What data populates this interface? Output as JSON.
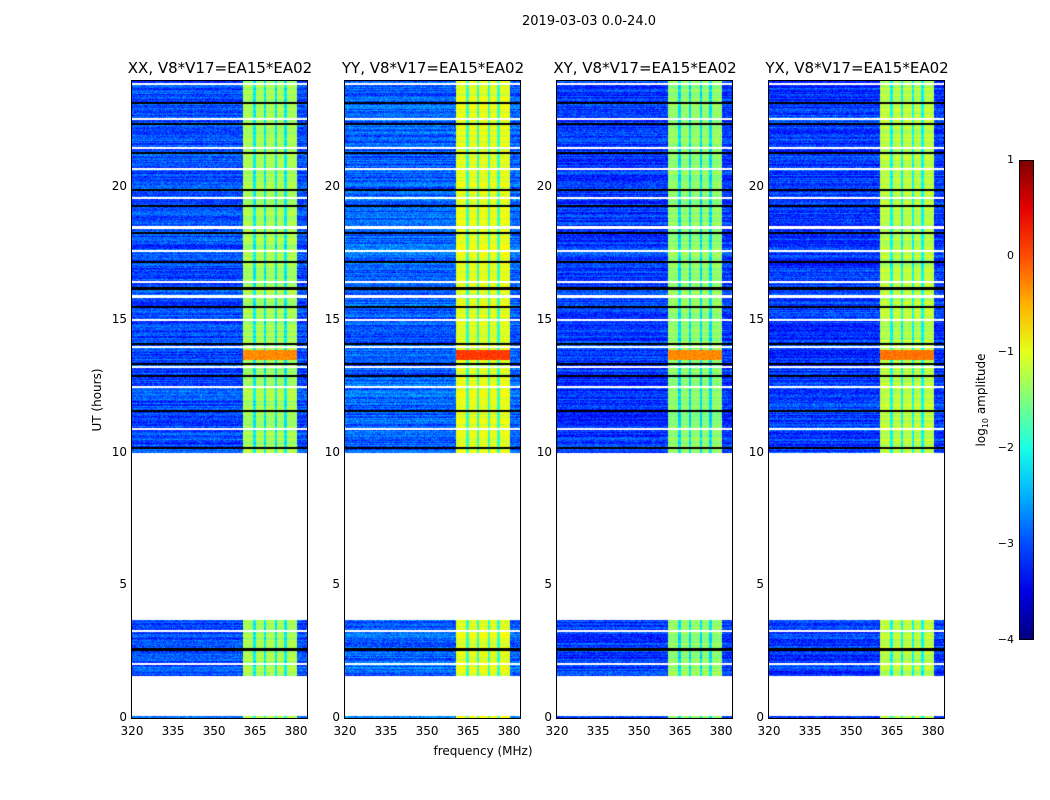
{
  "chart_data": {
    "type": "heatmap",
    "title": "2019-03-03 0.0-24.0",
    "xlabel": "frequency (MHz)",
    "ylabel": "UT (hours)",
    "xlim": [
      320,
      384
    ],
    "ylim": [
      0,
      24
    ],
    "xticks": [
      "320",
      "335",
      "350",
      "365",
      "380"
    ],
    "xtick_values": [
      320,
      335,
      350,
      365,
      380
    ],
    "yticks": [
      "0",
      "5",
      "10",
      "15",
      "20"
    ],
    "ytick_values": [
      0,
      5,
      10,
      15,
      20
    ],
    "colorbar": {
      "label": "log10 amplitude",
      "label_main": "log",
      "label_sub": "10",
      "label_rest": " amplitude",
      "colormap": "jet",
      "range": [
        -4,
        1
      ],
      "ticks": [
        "1",
        "0",
        "−1",
        "−2",
        "−3",
        "−4"
      ],
      "tick_values": [
        1,
        0,
        -1,
        -2,
        -3,
        -4
      ]
    },
    "data_time_ranges_hours": [
      [
        0.0,
        0.1
      ],
      [
        1.6,
        3.7
      ],
      [
        10.0,
        24.0
      ]
    ],
    "flagged_gaps_hours": [
      2.05,
      2.6,
      3.3,
      10.2,
      10.9,
      11.6,
      12.5,
      12.9,
      13.25,
      13.35,
      14.0,
      14.1,
      15.0,
      15.5,
      15.9,
      16.2,
      16.45,
      17.2,
      17.6,
      18.3,
      18.5,
      19.3,
      19.6,
      19.9,
      20.7,
      21.3,
      21.5,
      22.4,
      22.6,
      23.2,
      23.9
    ],
    "rfi_band_mhz": [
      360.5,
      380.0
    ],
    "rfi_band_stripes_mhz": [
      364.5,
      368.5,
      372.5,
      376.0
    ],
    "series": [
      {
        "name": "XX, V8*V17=EA15*EA02",
        "background_log_amp": -3.0,
        "band_log_amp": -1.3,
        "peak_log_amp": -0.3
      },
      {
        "name": "YY, V8*V17=EA15*EA02",
        "background_log_amp": -2.9,
        "band_log_amp": -1.0,
        "peak_log_amp": 0.1
      },
      {
        "name": "XY, V8*V17=EA15*EA02",
        "background_log_amp": -3.1,
        "band_log_amp": -1.4,
        "peak_log_amp": -0.3
      },
      {
        "name": "YX, V8*V17=EA15*EA02",
        "background_log_amp": -3.1,
        "band_log_amp": -1.2,
        "peak_log_amp": -0.2
      }
    ]
  }
}
